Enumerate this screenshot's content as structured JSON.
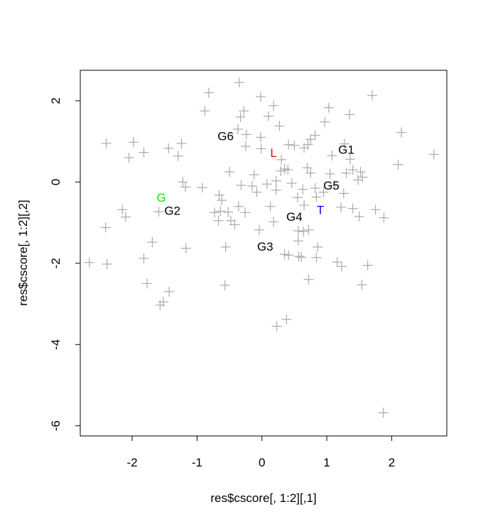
{
  "chart_data": {
    "type": "scatter",
    "title": "",
    "xlabel": "res$cscore[, 1:2][,1]",
    "ylabel": "res$cscore[, 1:2][,2]",
    "xlim": [
      -2.8,
      2.85
    ],
    "ylim": [
      -6.25,
      2.75
    ],
    "x_ticks": [
      -2,
      -1,
      0,
      1,
      2
    ],
    "x_tick_labels": [
      "-2",
      "-1",
      "0",
      "1",
      "2"
    ],
    "y_ticks": [
      -6,
      -4,
      -2,
      0,
      2
    ],
    "y_tick_labels": [
      "-6",
      "-4",
      "-2",
      "0",
      "2"
    ],
    "grid": false,
    "legend": "none",
    "marker_color": "#aaaaaa",
    "points": [
      [
        -0.35,
        2.45
      ],
      [
        -0.82,
        2.2
      ],
      [
        -0.02,
        2.1
      ],
      [
        1.7,
        2.13
      ],
      [
        1.03,
        1.83
      ],
      [
        0.18,
        1.88
      ],
      [
        -0.88,
        1.75
      ],
      [
        -0.28,
        1.75
      ],
      [
        -0.33,
        1.6
      ],
      [
        0.1,
        1.62
      ],
      [
        1.35,
        1.66
      ],
      [
        0.97,
        1.48
      ],
      [
        -0.37,
        1.3
      ],
      [
        0.27,
        1.38
      ],
      [
        -0.24,
        1.17
      ],
      [
        0.82,
        1.15
      ],
      [
        0.75,
        1.05
      ],
      [
        2.15,
        1.22
      ],
      [
        -2.4,
        0.95
      ],
      [
        -1.98,
        0.98
      ],
      [
        -1.24,
        0.95
      ],
      [
        -1.44,
        0.83
      ],
      [
        -1.82,
        0.73
      ],
      [
        -2.05,
        0.6
      ],
      [
        -1.29,
        0.64
      ],
      [
        -0.25,
        0.88
      ],
      [
        -0.01,
        0.82
      ],
      [
        0.41,
        0.92
      ],
      [
        0.65,
        0.84
      ],
      [
        0.71,
        0.92
      ],
      [
        -0.02,
        1.1
      ],
      [
        0.5,
        0.9
      ],
      [
        1.27,
        0.94
      ],
      [
        1.08,
        0.65
      ],
      [
        1.36,
        0.56
      ],
      [
        0.3,
        0.55
      ],
      [
        2.65,
        0.68
      ],
      [
        2.1,
        0.43
      ],
      [
        0.35,
        0.32
      ],
      [
        0.7,
        0.35
      ],
      [
        -0.5,
        0.25
      ],
      [
        0.29,
        0.27
      ],
      [
        0.4,
        0.3
      ],
      [
        0.75,
        0.22
      ],
      [
        1.05,
        0.2
      ],
      [
        1.52,
        0.25
      ],
      [
        1.48,
        0.05
      ],
      [
        1.55,
        0.12
      ],
      [
        -0.12,
        0.18
      ],
      [
        0.22,
        0.03
      ],
      [
        1.3,
        0.22
      ],
      [
        1.4,
        0.3
      ],
      [
        -1.22,
        0.0
      ],
      [
        -1.18,
        -0.12
      ],
      [
        -0.92,
        -0.14
      ],
      [
        -0.15,
        -0.1
      ],
      [
        -0.32,
        -0.08
      ],
      [
        0.46,
        -0.03
      ],
      [
        0.63,
        -0.18
      ],
      [
        0.82,
        -0.15
      ],
      [
        0.95,
        -0.25
      ],
      [
        1.12,
        -0.08
      ],
      [
        1.26,
        -0.28
      ],
      [
        0.22,
        -0.2
      ],
      [
        0.55,
        -0.38
      ],
      [
        -0.08,
        -0.25
      ],
      [
        -0.66,
        -0.32
      ],
      [
        -0.62,
        -0.45
      ],
      [
        0.84,
        -0.37
      ],
      [
        -0.36,
        -0.6
      ],
      [
        -0.64,
        -0.72
      ],
      [
        -0.52,
        -0.74
      ],
      [
        -0.26,
        -0.75
      ],
      [
        0.13,
        -0.6
      ],
      [
        0.65,
        -0.57
      ],
      [
        -2.15,
        -0.68
      ],
      [
        -2.1,
        -0.86
      ],
      [
        -1.59,
        -0.73
      ],
      [
        -2.41,
        -1.12
      ],
      [
        -0.67,
        -0.95
      ],
      [
        -0.48,
        -0.95
      ],
      [
        -0.42,
        -1.05
      ],
      [
        0.18,
        -0.98
      ],
      [
        0.64,
        -1.22
      ],
      [
        0.72,
        -1.18
      ],
      [
        1.22,
        -0.62
      ],
      [
        1.4,
        -0.65
      ],
      [
        1.5,
        -0.85
      ],
      [
        1.75,
        -0.68
      ],
      [
        1.88,
        -0.88
      ],
      [
        -0.04,
        -1.18
      ],
      [
        0.56,
        -1.2
      ],
      [
        0.56,
        -1.45
      ],
      [
        -1.69,
        -1.48
      ],
      [
        -1.17,
        -1.63
      ],
      [
        -0.56,
        -1.6
      ],
      [
        0.86,
        -1.6
      ],
      [
        -1.82,
        -1.88
      ],
      [
        0.41,
        -1.8
      ],
      [
        0.57,
        -1.83
      ],
      [
        0.84,
        -1.86
      ],
      [
        0.35,
        -1.78
      ],
      [
        0.61,
        -1.85
      ],
      [
        1.16,
        -1.97
      ],
      [
        1.23,
        -2.08
      ],
      [
        -2.66,
        -1.98
      ],
      [
        -2.39,
        -2.02
      ],
      [
        1.63,
        -2.05
      ],
      [
        0.72,
        -2.4
      ],
      [
        1.54,
        -2.53
      ],
      [
        -1.77,
        -2.5
      ],
      [
        -0.57,
        -2.54
      ],
      [
        -1.43,
        -2.7
      ],
      [
        -1.52,
        -2.95
      ],
      [
        -1.57,
        -3.03
      ],
      [
        0.23,
        -3.55
      ],
      [
        0.38,
        -3.38
      ],
      [
        1.87,
        -5.68
      ],
      [
        -0.73,
        -0.75
      ],
      [
        0.08,
        -0.05
      ]
    ],
    "labels": [
      {
        "text": "G6",
        "x": -0.56,
        "y": 1.13,
        "color": "#000000"
      },
      {
        "text": "L",
        "x": 0.18,
        "y": 0.72,
        "color": "#ff0000"
      },
      {
        "text": "G1",
        "x": 1.3,
        "y": 0.8,
        "color": "#000000"
      },
      {
        "text": "G5",
        "x": 1.07,
        "y": -0.08,
        "color": "#000000"
      },
      {
        "text": "G",
        "x": -1.55,
        "y": -0.38,
        "color": "#00ee00"
      },
      {
        "text": "G2",
        "x": -1.38,
        "y": -0.7,
        "color": "#000000"
      },
      {
        "text": "T",
        "x": 0.9,
        "y": -0.68,
        "color": "#0000ff"
      },
      {
        "text": "G4",
        "x": 0.5,
        "y": -0.85,
        "color": "#000000"
      },
      {
        "text": "G3",
        "x": 0.05,
        "y": -1.58,
        "color": "#000000"
      }
    ]
  }
}
